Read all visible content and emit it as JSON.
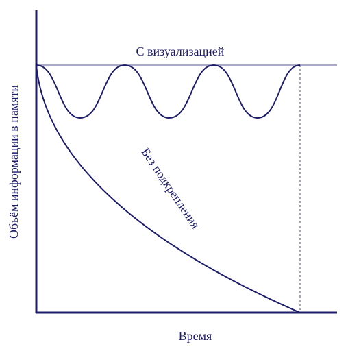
{
  "labels": {
    "top_curve": "С визуализацией",
    "bottom_curve": "Без подкрепления",
    "x_axis": "Время",
    "y_axis": "Объём информации в памяти"
  }
}
